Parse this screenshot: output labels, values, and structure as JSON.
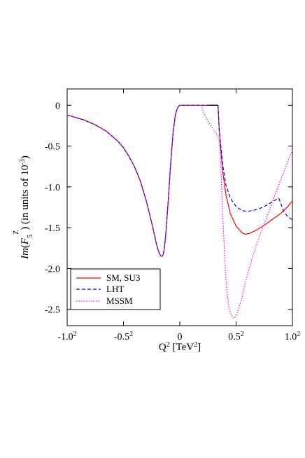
{
  "chart_data": {
    "type": "line",
    "xlabel": {
      "base": "Q",
      "sup": "2",
      "unit": " [TeV",
      "unit_sup": "2",
      "unit_close": "]"
    },
    "ylabel": {
      "prefix": "Im",
      "paren_open": "(",
      "script": "F",
      "sub": "5",
      "sup": "Z",
      "paren_close": ")",
      "rest": " (in units of 10",
      "rest_sup": "-3",
      "rest_close": ")"
    },
    "xlim": [
      -1.0,
      1.0
    ],
    "ylim": [
      -2.7,
      0.2
    ],
    "x_ticks": [
      {
        "value": -1.0,
        "label": "-1.0",
        "sup": "2"
      },
      {
        "value": -0.5,
        "label": "-0.5",
        "sup": "2"
      },
      {
        "value": 0.0,
        "label": "0",
        "sup": ""
      },
      {
        "value": 0.5,
        "label": "0.5",
        "sup": "2"
      },
      {
        "value": 1.0,
        "label": "1.0",
        "sup": "2"
      }
    ],
    "y_ticks": [
      {
        "value": 0,
        "label": "0"
      },
      {
        "value": -0.5,
        "label": "-0.5"
      },
      {
        "value": -1.0,
        "label": "-1.0"
      },
      {
        "value": -1.5,
        "label": "-1.5"
      },
      {
        "value": -2.0,
        "label": "-2.0"
      },
      {
        "value": -2.5,
        "label": "-2.5"
      }
    ],
    "grid": false,
    "legend_position": "bottom-left",
    "series": [
      {
        "name": "SM, SU3",
        "color": "#ff0000",
        "dash": "solid",
        "x": [
          0.34,
          0.35,
          0.38,
          0.41,
          0.45,
          0.5,
          0.55,
          0.58,
          0.62,
          0.68,
          0.75,
          0.82,
          0.9,
          0.96,
          1.0
        ],
        "y": [
          0,
          -0.3,
          -0.8,
          -1.1,
          -1.33,
          -1.48,
          -1.56,
          -1.58,
          -1.57,
          -1.53,
          -1.47,
          -1.4,
          -1.32,
          -1.24,
          -1.17
        ]
      },
      {
        "name": "LHT",
        "color": "#0000ff",
        "dash": "dashed",
        "x": [
          0.34,
          0.35,
          0.38,
          0.41,
          0.45,
          0.5,
          0.55,
          0.6,
          0.65,
          0.7,
          0.75,
          0.8,
          0.85,
          0.88,
          0.92,
          0.96,
          1.0
        ],
        "y": [
          0,
          -0.3,
          -0.72,
          -0.98,
          -1.14,
          -1.24,
          -1.29,
          -1.3,
          -1.29,
          -1.27,
          -1.24,
          -1.2,
          -1.16,
          -1.14,
          -1.29,
          -1.37,
          -1.4
        ]
      },
      {
        "name": "MSSM",
        "color": "#ff00ff",
        "dash": "dotted",
        "x": [
          0.19,
          0.21,
          0.24,
          0.27,
          0.3,
          0.33,
          0.35,
          0.36,
          0.38,
          0.4,
          0.42,
          0.44,
          0.46,
          0.48,
          0.5,
          0.52,
          0.55,
          0.58,
          0.62,
          0.66,
          0.7,
          0.75,
          0.8,
          0.85,
          0.9,
          0.94,
          0.97,
          1.0
        ],
        "y": [
          0,
          -0.08,
          -0.17,
          -0.24,
          -0.3,
          -0.36,
          -0.43,
          -0.6,
          -1.3,
          -1.9,
          -2.3,
          -2.5,
          -2.58,
          -2.61,
          -2.58,
          -2.5,
          -2.37,
          -2.18,
          -1.98,
          -1.8,
          -1.63,
          -1.45,
          -1.27,
          -1.08,
          -0.9,
          -0.76,
          -0.65,
          -0.55
        ]
      }
    ],
    "common_curve": {
      "x": [
        -1.0,
        -0.95,
        -0.9,
        -0.85,
        -0.8,
        -0.75,
        -0.7,
        -0.65,
        -0.6,
        -0.55,
        -0.5,
        -0.45,
        -0.4,
        -0.35,
        -0.3,
        -0.27,
        -0.24,
        -0.22,
        -0.2,
        -0.18,
        -0.17,
        -0.16,
        -0.15,
        -0.14,
        -0.13,
        -0.12,
        -0.1,
        -0.08,
        -0.06,
        -0.04,
        -0.02,
        0.0,
        0.02,
        0.05,
        0.1,
        0.15,
        0.19,
        0.25,
        0.3,
        0.34
      ],
      "y": [
        -0.12,
        -0.14,
        -0.16,
        -0.18,
        -0.21,
        -0.24,
        -0.28,
        -0.32,
        -0.38,
        -0.44,
        -0.52,
        -0.63,
        -0.76,
        -0.93,
        -1.16,
        -1.32,
        -1.5,
        -1.62,
        -1.74,
        -1.82,
        -1.845,
        -1.85,
        -1.84,
        -1.78,
        -1.66,
        -1.5,
        -1.12,
        -0.7,
        -0.35,
        -0.12,
        -0.03,
        0,
        0,
        0,
        0,
        0,
        0,
        0,
        0,
        0
      ]
    }
  }
}
